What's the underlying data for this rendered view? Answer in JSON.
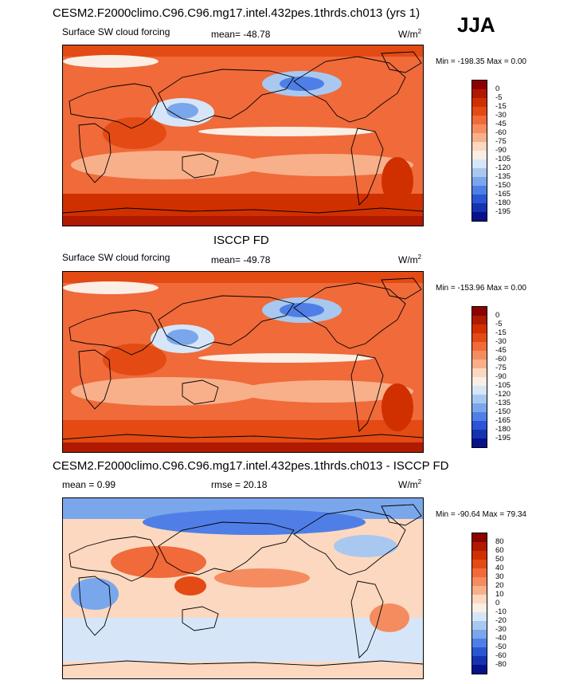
{
  "season": "JJA",
  "panels": [
    {
      "id": "model",
      "title": "CESM2.F2000climo.C96.C96.mg17.intel.432pes.1thrds.ch013 (yrs 1)",
      "left_label": "Surface SW cloud forcing",
      "center_label": "mean= -48.78",
      "units": "W/m",
      "units_sup": "2",
      "minmax": "Min = -198.35 Max =   0.00",
      "levels": [
        "0",
        "-5",
        "-15",
        "-30",
        "-45",
        "-60",
        "-75",
        "-90",
        "-105",
        "-120",
        "-135",
        "-150",
        "-165",
        "-180",
        "-195"
      ],
      "colors": [
        "#8b0000",
        "#b01a00",
        "#d03000",
        "#e34a14",
        "#f06a3a",
        "#f58c5f",
        "#f8b08a",
        "#fcd8c0",
        "#fbeee4",
        "#d6e6f8",
        "#a8c8f0",
        "#7aa6ec",
        "#4f7fe6",
        "#2a56d4",
        "#1533b0",
        "#07118a"
      ]
    },
    {
      "id": "obs",
      "title": "ISCCP FD",
      "left_label": "Surface SW cloud forcing",
      "center_label": "mean= -49.78",
      "units": "W/m",
      "units_sup": "2",
      "minmax": "Min = -153.96 Max =   0.00",
      "levels": [
        "0",
        "-5",
        "-15",
        "-30",
        "-45",
        "-60",
        "-75",
        "-90",
        "-105",
        "-120",
        "-135",
        "-150",
        "-165",
        "-180",
        "-195"
      ],
      "colors": [
        "#8b0000",
        "#b01a00",
        "#d03000",
        "#e34a14",
        "#f06a3a",
        "#f58c5f",
        "#f8b08a",
        "#fcd8c0",
        "#fbeee4",
        "#d6e6f8",
        "#a8c8f0",
        "#7aa6ec",
        "#4f7fe6",
        "#2a56d4",
        "#1533b0",
        "#07118a"
      ]
    },
    {
      "id": "diff",
      "title": "CESM2.F2000climo.C96.C96.mg17.intel.432pes.1thrds.ch013 - ISCCP FD",
      "left_label": "mean =   0.99",
      "center_label": "rmse =  20.18",
      "units": "W/m",
      "units_sup": "2",
      "minmax": "Min = -90.64 Max =  79.34",
      "levels": [
        "80",
        "60",
        "50",
        "40",
        "30",
        "20",
        "10",
        "0",
        "-10",
        "-20",
        "-30",
        "-40",
        "-50",
        "-60",
        "-80"
      ],
      "colors": [
        "#8b0000",
        "#b01a00",
        "#d03000",
        "#e34a14",
        "#f06a3a",
        "#f58c5f",
        "#f8b08a",
        "#fcd8c0",
        "#fbeee4",
        "#d6e6f8",
        "#a8c8f0",
        "#7aa6ec",
        "#4f7fe6",
        "#2a56d4",
        "#1533b0",
        "#07118a"
      ]
    }
  ],
  "chart_data": [
    {
      "type": "heatmap",
      "title": "CESM2.F2000climo.C96.C96.mg17.intel.432pes.1thrds.ch013 (yrs 1)",
      "variable": "Surface SW cloud forcing",
      "units": "W/m2",
      "season": "JJA",
      "mean": -48.78,
      "min": -198.35,
      "max": 0.0,
      "contour_levels": [
        0,
        -5,
        -15,
        -30,
        -45,
        -60,
        -75,
        -90,
        -105,
        -120,
        -135,
        -150,
        -165,
        -180,
        -195
      ]
    },
    {
      "type": "heatmap",
      "title": "ISCCP FD",
      "variable": "Surface SW cloud forcing",
      "units": "W/m2",
      "season": "JJA",
      "mean": -49.78,
      "min": -153.96,
      "max": 0.0,
      "contour_levels": [
        0,
        -5,
        -15,
        -30,
        -45,
        -60,
        -75,
        -90,
        -105,
        -120,
        -135,
        -150,
        -165,
        -180,
        -195
      ]
    },
    {
      "type": "heatmap",
      "title": "CESM2.F2000climo.C96.C96.mg17.intel.432pes.1thrds.ch013 - ISCCP FD",
      "units": "W/m2",
      "season": "JJA",
      "mean": 0.99,
      "rmse": 20.18,
      "min": -90.64,
      "max": 79.34,
      "contour_levels": [
        80,
        60,
        50,
        40,
        30,
        20,
        10,
        0,
        -10,
        -20,
        -30,
        -40,
        -50,
        -60,
        -80
      ]
    }
  ]
}
